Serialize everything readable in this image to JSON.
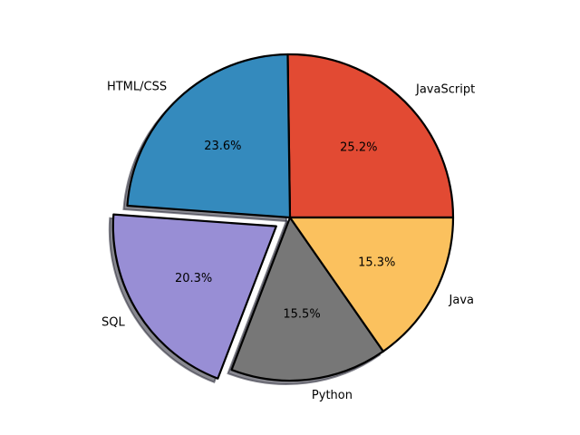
{
  "chart_data": {
    "type": "pie",
    "slices": [
      {
        "label": "JavaScript",
        "pct_text": "25.2%",
        "value": 25.2,
        "color": "#E24A33",
        "exploded": false,
        "shadow": false
      },
      {
        "label": "HTML/CSS",
        "pct_text": "23.6%",
        "value": 23.6,
        "color": "#348ABD",
        "exploded": false,
        "shadow": true
      },
      {
        "label": "SQL",
        "pct_text": "20.3%",
        "value": 20.3,
        "color": "#988ED5",
        "exploded": true,
        "shadow": true
      },
      {
        "label": "Python",
        "pct_text": "15.5%",
        "value": 15.5,
        "color": "#777777",
        "exploded": false,
        "shadow": true
      },
      {
        "label": "Java",
        "pct_text": "15.3%",
        "value": 15.3,
        "color": "#FBC15E",
        "exploded": false,
        "shadow": false
      }
    ],
    "start_angle_deg": 0,
    "direction": "counterclockwise",
    "edge_color": "#000000"
  }
}
